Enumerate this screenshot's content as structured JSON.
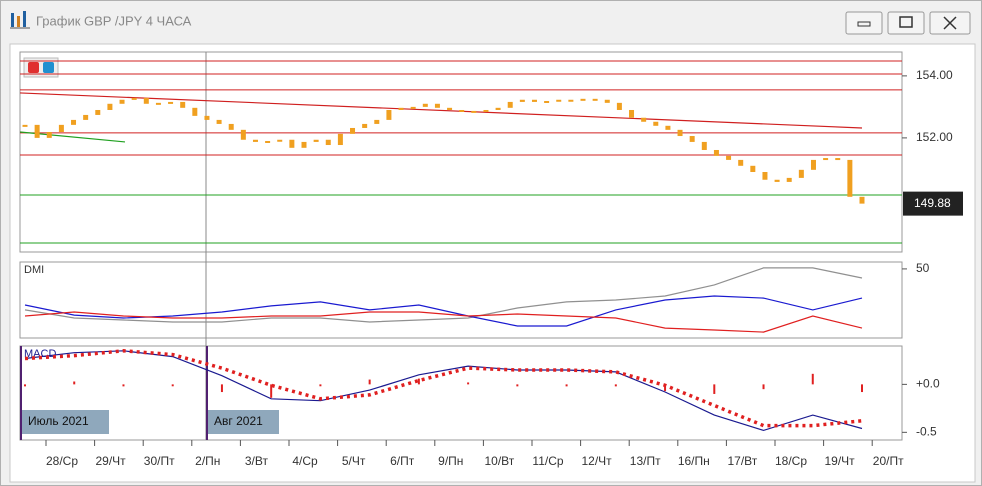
{
  "window": {
    "title": "График GBP /JPY  4 ЧАСА"
  },
  "time_axis": {
    "labels": [
      "28/Ср",
      "29/Чт",
      "30/Пт",
      "2/Пн",
      "3/Вт",
      "4/Ср",
      "5/Чт",
      "6/Пт",
      "9/Пн",
      "10/Вт",
      "11/Ср",
      "12/Чт",
      "13/Пт",
      "16/Пн",
      "17/Вт",
      "18/Ср",
      "19/Чт",
      "20/Пт"
    ],
    "periods": [
      "Июль 2021",
      "Авг 2021"
    ]
  },
  "chart_data": [
    {
      "type": "candlestick",
      "color": "#f0a020",
      "closes": [
        152.42,
        152.0,
        152.19,
        152.42,
        152.58,
        152.74,
        152.9,
        153.1,
        153.23,
        153.29,
        153.1,
        153.13,
        153.16,
        152.97,
        152.71,
        152.58,
        152.45,
        152.26,
        151.94,
        151.87,
        151.9,
        151.94,
        151.68,
        151.87,
        151.94,
        151.77,
        152.13,
        152.32,
        152.45,
        152.58,
        152.9,
        152.97,
        153.0,
        153.1,
        152.97,
        152.9,
        152.84,
        152.87,
        152.9,
        152.97,
        153.16,
        153.23,
        153.16,
        153.19,
        153.23,
        153.23,
        153.26,
        153.23,
        153.13,
        152.9,
        152.65,
        152.52,
        152.39,
        152.26,
        152.06,
        151.87,
        151.61,
        151.42,
        151.29,
        151.1,
        150.9,
        150.65,
        150.58,
        150.71,
        150.97,
        151.29,
        151.35,
        151.29,
        150.1,
        149.88
      ],
      "ylim": [
        148.32,
        154.77
      ],
      "yticks": [
        {
          "value": 154,
          "label": "154.00"
        },
        {
          "value": 152,
          "label": "152.00"
        }
      ],
      "current_price": 149.88,
      "levels": [
        {
          "value": 154.48,
          "color": "#d02020"
        },
        {
          "value": 154.06,
          "color": "#d02020"
        },
        {
          "value": 153.55,
          "color": "#d02020"
        },
        {
          "value": 152.16,
          "color": "#d02020"
        },
        {
          "value": 151.45,
          "color": "#d02020"
        },
        {
          "value": 150.16,
          "color": "#20a020"
        },
        {
          "value": 148.61,
          "color": "#20a020"
        }
      ],
      "trendlines": [
        {
          "color": "#d02020",
          "values": [
            153.45,
            152.32
          ]
        },
        {
          "color": "#20a020",
          "values": [
            152.19,
            151.87
          ]
        }
      ]
    },
    {
      "type": "line",
      "label": "DMI",
      "ylim": [
        0,
        55
      ],
      "yticks": [
        50
      ],
      "series": [
        {
          "color": "#909090",
          "values": [
            20.3,
            14.5,
            13.0,
            11.6,
            11.6,
            14.5,
            14.5,
            11.6,
            13.0,
            14.5,
            21.7,
            26.1,
            27.5,
            30.4,
            38.4,
            50.7,
            50.7,
            43.4
          ]
        },
        {
          "color": "#1a1ad0",
          "values": [
            23.9,
            16.6,
            14.5,
            15.9,
            18.8,
            23.2,
            26.1,
            20.3,
            23.9,
            15.9,
            8.7,
            8.7,
            20.3,
            27.5,
            30.4,
            28.9,
            20.3,
            28.9
          ]
        },
        {
          "color": "#e02020",
          "values": [
            15.9,
            18.8,
            15.9,
            14.5,
            14.5,
            15.9,
            15.9,
            18.8,
            18.8,
            15.9,
            17.4,
            15.9,
            14.5,
            7.2,
            5.8,
            4.3,
            15.9,
            7.2
          ]
        }
      ]
    },
    {
      "type": "macd",
      "label": "MACD",
      "ylim": [
        -0.58,
        0.4
      ],
      "yticks": [
        {
          "value": 0,
          "label": "+0.0"
        },
        {
          "value": -0.5,
          "label": "-0.5"
        }
      ],
      "series": [
        {
          "color": "#1a1a90",
          "style": "line",
          "values": [
            0.27,
            0.33,
            0.35,
            0.29,
            0.09,
            -0.15,
            -0.17,
            -0.06,
            0.1,
            0.19,
            0.15,
            0.15,
            0.13,
            -0.08,
            -0.32,
            -0.48,
            -0.32,
            -0.46
          ]
        },
        {
          "color": "#e02020",
          "style": "dots",
          "values": [
            0.27,
            0.3,
            0.35,
            0.31,
            0.17,
            -0.01,
            -0.15,
            -0.11,
            0.04,
            0.17,
            0.15,
            0.15,
            0.13,
            -0.01,
            -0.22,
            -0.43,
            -0.43,
            -0.38
          ]
        },
        {
          "color": "#e02020",
          "style": "bar",
          "values": [
            0,
            0.03,
            0,
            -0.02,
            -0.08,
            -0.14,
            -0.02,
            0.05,
            0.06,
            0.02,
            0,
            0,
            0,
            -0.07,
            -0.1,
            -0.05,
            0.11,
            -0.08
          ]
        }
      ]
    }
  ]
}
